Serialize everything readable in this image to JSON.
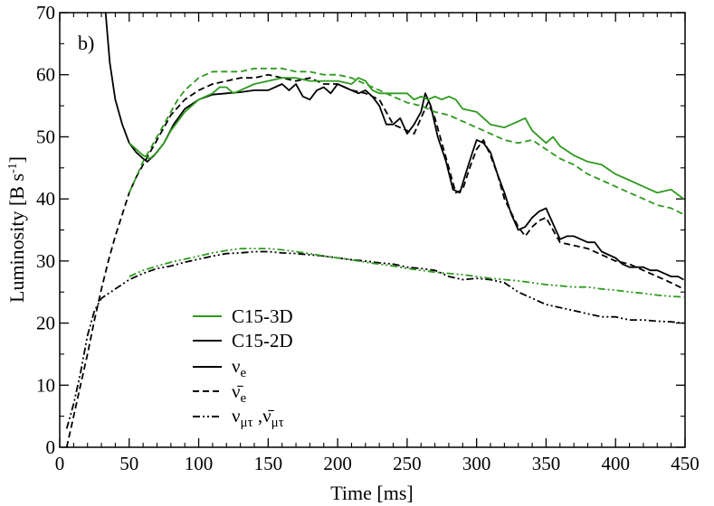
{
  "chart_data": {
    "type": "line",
    "panel_label": "b)",
    "xlabel": "Time [ms]",
    "ylabel": "Luminosity [B s",
    "ylabel_sup": "-1",
    "ylabel_close": "]",
    "xlim": [
      0,
      450
    ],
    "ylim": [
      0,
      70
    ],
    "xticks": [
      0,
      50,
      100,
      150,
      200,
      250,
      300,
      350,
      400,
      450
    ],
    "yticks": [
      0,
      10,
      20,
      30,
      40,
      50,
      60,
      70
    ],
    "colors": {
      "c15_3d": "#2e9a1e",
      "c15_2d": "#000000"
    },
    "legend": {
      "models": [
        {
          "label": "C15-3D",
          "color": "#2e9a1e"
        },
        {
          "label": "C15-2D",
          "color": "#000000"
        }
      ],
      "flavors": [
        {
          "base": "ν",
          "sub": "e",
          "style": "solid"
        },
        {
          "base": "ν̄",
          "sub": "e",
          "style": "dashed"
        },
        {
          "base": "ν",
          "sub": "μτ",
          "sep": " ,",
          "base2": "ν̄",
          "sub2": "μτ",
          "style": "dashdotdot"
        }
      ]
    },
    "series": [
      {
        "name": "C15-2D nu_e",
        "model": "C15-2D",
        "flavor": "nu_e",
        "color": "#000000",
        "style": "solid",
        "x": [
          33,
          36,
          40,
          45,
          50,
          55,
          60,
          63,
          68,
          75,
          82,
          90,
          100,
          110,
          120,
          130,
          140,
          150,
          160,
          165,
          170,
          175,
          180,
          185,
          190,
          195,
          200,
          205,
          210,
          215,
          220,
          225,
          230,
          235,
          240,
          245,
          250,
          255,
          260,
          263,
          267,
          272,
          278,
          283,
          288,
          292,
          297,
          300,
          305,
          310,
          315,
          320,
          325,
          330,
          335,
          340,
          345,
          350,
          355,
          360,
          365,
          370,
          375,
          380,
          385,
          390,
          395,
          400,
          405,
          410,
          415,
          420,
          425,
          430,
          435,
          440,
          445,
          449
        ],
        "y": [
          70,
          62,
          56,
          52,
          49,
          47.5,
          46.5,
          46,
          47,
          49,
          52,
          54.5,
          56,
          56.8,
          57,
          57.2,
          57.5,
          57.5,
          58.5,
          57.5,
          58.5,
          56.5,
          56,
          57.5,
          58,
          57,
          58.5,
          58,
          57.5,
          57,
          57.5,
          56.5,
          55,
          52,
          52,
          53,
          50.5,
          52,
          54,
          57,
          55,
          50,
          46,
          41.5,
          41,
          44,
          47.5,
          49.5,
          49,
          47.5,
          44,
          41,
          37.5,
          35,
          35.5,
          37,
          38,
          38.5,
          36,
          33.5,
          34,
          34,
          33.5,
          33,
          33,
          31.5,
          31,
          30.5,
          29.5,
          29,
          29,
          29,
          28.5,
          28.5,
          28,
          27.5,
          27.5,
          27
        ]
      },
      {
        "name": "C15-2D anti-nu_e",
        "model": "C15-2D",
        "flavor": "anti_nu_e",
        "color": "#000000",
        "style": "dashed",
        "x": [
          5,
          10,
          15,
          20,
          25,
          30,
          35,
          40,
          45,
          50,
          55,
          60,
          65,
          70,
          75,
          80,
          90,
          100,
          110,
          120,
          130,
          140,
          150,
          160,
          170,
          180,
          190,
          200,
          210,
          220,
          230,
          240,
          250,
          255,
          260,
          265,
          270,
          275,
          280,
          285,
          290,
          295,
          300,
          305,
          310,
          315,
          320,
          330,
          335,
          340,
          345,
          350,
          355,
          360,
          370,
          380,
          390,
          400,
          410,
          420,
          430,
          440,
          449
        ],
        "y": [
          0,
          5,
          10,
          15,
          20.5,
          25.5,
          30,
          34,
          37.5,
          41,
          43.5,
          45.5,
          47.5,
          49.5,
          51.5,
          53.5,
          56,
          57.5,
          58.5,
          59,
          59.5,
          59.5,
          60,
          59.5,
          59,
          59.5,
          58.5,
          58.5,
          57.5,
          57,
          56,
          52,
          51,
          50.5,
          53,
          55.5,
          53,
          49,
          45,
          41,
          41.5,
          45,
          48,
          49.5,
          47,
          44,
          40,
          35.5,
          34,
          35.5,
          36.5,
          37,
          35,
          33,
          32.5,
          32,
          31,
          30,
          29.5,
          28.5,
          27.5,
          26.5,
          25.5
        ]
      },
      {
        "name": "C15-2D nu_mutau",
        "model": "C15-2D",
        "flavor": "nu_mutau",
        "color": "#000000",
        "style": "dashdotdot",
        "x": [
          5,
          10,
          15,
          20,
          25,
          30,
          40,
          50,
          60,
          70,
          80,
          90,
          100,
          110,
          120,
          130,
          140,
          150,
          160,
          170,
          180,
          190,
          200,
          210,
          220,
          230,
          240,
          250,
          260,
          270,
          280,
          290,
          300,
          310,
          320,
          330,
          340,
          350,
          360,
          370,
          380,
          390,
          400,
          410,
          420,
          430,
          440,
          449
        ],
        "y": [
          3,
          7,
          12,
          18,
          22,
          24,
          25.5,
          27,
          28,
          28.8,
          29.2,
          29.8,
          30.3,
          30.8,
          31.2,
          31.3,
          31.5,
          31.5,
          31.3,
          31.2,
          31,
          30.8,
          30.5,
          30.2,
          30,
          29.7,
          29.5,
          29,
          28.8,
          28.5,
          27.5,
          27,
          27.2,
          27,
          26.5,
          25,
          24,
          23,
          22.5,
          22,
          21.5,
          21,
          21,
          20.5,
          20.5,
          20.3,
          20.2,
          20
        ]
      },
      {
        "name": "C15-3D nu_e",
        "model": "C15-3D",
        "flavor": "nu_e",
        "color": "#2e9a1e",
        "style": "solid",
        "x": [
          50,
          55,
          60,
          65,
          70,
          75,
          80,
          85,
          90,
          95,
          100,
          105,
          110,
          115,
          120,
          125,
          130,
          135,
          140,
          150,
          160,
          170,
          180,
          190,
          200,
          210,
          215,
          220,
          225,
          230,
          240,
          250,
          255,
          260,
          265,
          270,
          275,
          280,
          285,
          290,
          300,
          310,
          320,
          330,
          335,
          340,
          350,
          355,
          360,
          370,
          380,
          390,
          400,
          410,
          420,
          430,
          440,
          449
        ],
        "y": [
          49,
          48,
          47,
          46.5,
          47.5,
          49,
          51,
          52.5,
          54,
          55,
          56,
          56.5,
          57,
          58,
          58,
          57,
          57.5,
          58,
          58.5,
          59,
          59.5,
          59.5,
          59,
          59,
          59,
          58.5,
          59.5,
          59,
          57.5,
          57,
          57,
          57,
          56,
          56.5,
          56,
          56.5,
          56,
          56.5,
          56,
          54.5,
          54,
          52,
          51.5,
          52.5,
          53,
          51,
          49,
          50,
          48.5,
          47,
          46,
          45.5,
          44,
          43,
          42,
          41,
          41.5,
          40
        ]
      },
      {
        "name": "C15-3D anti-nu_e",
        "model": "C15-3D",
        "flavor": "anti_nu_e",
        "color": "#2e9a1e",
        "style": "dashed",
        "x": [
          50,
          55,
          60,
          65,
          70,
          75,
          80,
          85,
          90,
          95,
          100,
          105,
          110,
          120,
          130,
          140,
          150,
          160,
          170,
          180,
          190,
          200,
          210,
          220,
          230,
          240,
          250,
          260,
          270,
          280,
          290,
          300,
          310,
          320,
          330,
          340,
          350,
          360,
          370,
          380,
          390,
          400,
          410,
          420,
          430,
          440,
          449
        ],
        "y": [
          41,
          43.5,
          46,
          48,
          50,
          52,
          54,
          56,
          57.5,
          58.5,
          59.5,
          60,
          60.5,
          60.5,
          60.5,
          61,
          61,
          61,
          60.5,
          60.5,
          60,
          60,
          59.5,
          58.5,
          57.5,
          56.5,
          55.5,
          55,
          54,
          53.5,
          52.5,
          51.5,
          50.5,
          49.5,
          49,
          49.5,
          48,
          46.5,
          45.5,
          44,
          43,
          42,
          41,
          40,
          39,
          38.5,
          37.5
        ]
      },
      {
        "name": "C15-3D nu_mutau",
        "model": "C15-3D",
        "flavor": "nu_mutau",
        "color": "#2e9a1e",
        "style": "dashdotdot",
        "x": [
          50,
          60,
          70,
          80,
          90,
          100,
          110,
          120,
          130,
          140,
          150,
          160,
          170,
          180,
          190,
          200,
          210,
          220,
          230,
          240,
          250,
          260,
          270,
          280,
          290,
          300,
          310,
          320,
          330,
          340,
          350,
          360,
          370,
          380,
          390,
          400,
          410,
          420,
          430,
          440,
          449
        ],
        "y": [
          27.5,
          28.5,
          29.2,
          29.8,
          30.3,
          30.8,
          31.3,
          31.7,
          32,
          32,
          32,
          31.8,
          31.5,
          31.2,
          30.8,
          30.5,
          30.2,
          29.8,
          29.5,
          29.2,
          28.8,
          28.5,
          28.2,
          28,
          27.8,
          27.5,
          27.2,
          27,
          26.8,
          26.5,
          26.2,
          26,
          25.8,
          25.8,
          25.5,
          25.3,
          25,
          24.8,
          24.5,
          24.3,
          24.2
        ]
      }
    ]
  }
}
